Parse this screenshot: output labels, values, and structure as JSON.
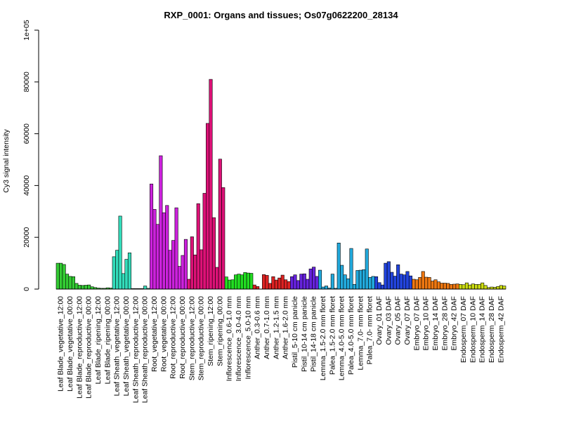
{
  "chart_data": {
    "type": "bar",
    "title": "RXP_0001: Organs and tissues; Os07g0622200_28134",
    "ylabel": "Cy3 signal intensity",
    "xlabel": "",
    "ylim": [
      0,
      100000
    ],
    "yticks": [
      {
        "value": 0,
        "label": "0"
      },
      {
        "value": 20000,
        "label": "20000"
      },
      {
        "value": 40000,
        "label": "40000"
      },
      {
        "value": 60000,
        "label": "60000"
      },
      {
        "value": 80000,
        "label": "80000"
      },
      {
        "value": 100000,
        "label": "1e+05"
      }
    ],
    "groups": [
      {
        "label": "Leaf Blade_vegetative_12:00",
        "color": "#33cc33",
        "values": [
          10000,
          10000,
          9500
        ]
      },
      {
        "label": "Leaf Blade_vegetative_00:00",
        "color": "#33cc33",
        "values": [
          5800,
          4900,
          4800
        ]
      },
      {
        "label": "Leaf Blade_reproductive_12:00",
        "color": "#33cc33",
        "values": [
          2200,
          1500,
          1400
        ]
      },
      {
        "label": "Leaf Blade_reproductive_00:00",
        "color": "#33cc33",
        "values": [
          1500,
          1600,
          900
        ]
      },
      {
        "label": "Leaf Blade_ripening_12:00",
        "color": "#33cc33",
        "values": [
          600,
          400,
          300
        ]
      },
      {
        "label": "Leaf Blade_ripening_00:00",
        "color": "#33cc33",
        "values": [
          300,
          500,
          400
        ]
      },
      {
        "label": "Leaf Sheath_vegetative_12:00",
        "color": "#33ddbb",
        "values": [
          12500,
          15000,
          28200
        ]
      },
      {
        "label": "Leaf Sheath_vegetative_00:00",
        "color": "#33ddbb",
        "values": [
          6000,
          11500,
          14000
        ]
      },
      {
        "label": "Leaf Sheath_reproductive_12:00",
        "color": "#33ddbb",
        "values": [
          200,
          200,
          200
        ]
      },
      {
        "label": "Leaf Sheath_reproductive_00:00",
        "color": "#33ddbb",
        "values": [
          200,
          1200,
          300
        ]
      },
      {
        "label": "Root_vegetative_12:00",
        "color": "#cc22dd",
        "values": [
          40600,
          30800,
          25000
        ]
      },
      {
        "label": "Root_vegetative_00:00",
        "color": "#cc22dd",
        "values": [
          51500,
          29500,
          32300
        ]
      },
      {
        "label": "Root_reproductive_12:00",
        "color": "#cc22dd",
        "values": [
          15000,
          18800,
          31400
        ]
      },
      {
        "label": "Root_reproductive_00:00",
        "color": "#cc22dd",
        "values": [
          8800,
          13000,
          19200
        ]
      },
      {
        "label": "Stem_reproductive_12:00",
        "color": "#dd1177",
        "values": [
          3800,
          20200,
          13200
        ]
      },
      {
        "label": "Stem_reproductive_00:00",
        "color": "#dd1177",
        "values": [
          33000,
          15200,
          37000
        ]
      },
      {
        "label": "Stem_ripening_12:00",
        "color": "#dd1177",
        "values": [
          64000,
          81000,
          27600
        ]
      },
      {
        "label": "Stem_ripening_00:00",
        "color": "#dd1177",
        "values": [
          8400,
          50200,
          39200
        ]
      },
      {
        "label": "Inflorescence_0.6-1.0 mm",
        "color": "#22dd22",
        "values": [
          4700,
          3500,
          3600
        ]
      },
      {
        "label": "Inflorescence_3.0-4.0 mm",
        "color": "#22dd22",
        "values": [
          5500,
          5800,
          5500
        ]
      },
      {
        "label": "Inflorescence_5.0-10 mm",
        "color": "#22dd22",
        "values": [
          6400,
          6200,
          6100
        ]
      },
      {
        "label": "Anther_0.3-0.6 mm",
        "color": "#dd2222",
        "values": [
          1600,
          1000,
          0
        ]
      },
      {
        "label": "Anther_0.7-1.0 mm",
        "color": "#dd2222",
        "values": [
          5600,
          5300,
          2200
        ]
      },
      {
        "label": "Anther_1.2-1.5 mm",
        "color": "#dd2222",
        "values": [
          4800,
          3500,
          4300
        ]
      },
      {
        "label": "Anther_1.6-2.0 mm",
        "color": "#dd2222",
        "values": [
          5400,
          3600,
          2900
        ]
      },
      {
        "label": "Pistil_5-10 cm panicle",
        "color": "#6622dd",
        "values": [
          4800,
          5500,
          3300
        ]
      },
      {
        "label": "Pistil_10-14 cm panicle",
        "color": "#6622dd",
        "values": [
          5800,
          5900,
          3800
        ]
      },
      {
        "label": "Pistil_14-18 cm panicle",
        "color": "#6622dd",
        "values": [
          7800,
          8500,
          4900
        ]
      },
      {
        "label": "Lemma_1.5-2.0 mm floret",
        "color": "#22aadd",
        "values": [
          7300,
          800,
          1200
        ]
      },
      {
        "label": "Palea_1.5-2.0 mm floret",
        "color": "#22aadd",
        "values": [
          400,
          5800,
          300
        ]
      },
      {
        "label": "Lemma_4.0-5.0 mm floret",
        "color": "#22aadd",
        "values": [
          17800,
          9200,
          5500
        ]
      },
      {
        "label": "Palea_4.0-5.0 mm floret",
        "color": "#22aadd",
        "values": [
          4000,
          15700,
          1800
        ]
      },
      {
        "label": "Lemma_7.0- mm floret",
        "color": "#22aadd",
        "values": [
          7200,
          7300,
          7500
        ]
      },
      {
        "label": "Palea_7.0- mm floret",
        "color": "#22aadd",
        "values": [
          15500,
          4500,
          4900
        ]
      },
      {
        "label": "Ovary_01 DAF",
        "color": "#2244dd",
        "values": [
          4800,
          2500,
          1600
        ]
      },
      {
        "label": "Ovary_03 DAF",
        "color": "#2244dd",
        "values": [
          10000,
          10600,
          6500
        ]
      },
      {
        "label": "Ovary_05 DAF",
        "color": "#2244dd",
        "values": [
          5000,
          9400,
          5800
        ]
      },
      {
        "label": "Ovary_07 DAF",
        "color": "#2244dd",
        "values": [
          5500,
          6800,
          5100
        ]
      },
      {
        "label": "Embryo_07 DAF",
        "color": "#ee7711",
        "values": [
          3800,
          3600,
          4500
        ]
      },
      {
        "label": "Embryo_10 DAF",
        "color": "#ee7711",
        "values": [
          6800,
          4600,
          4500
        ]
      },
      {
        "label": "Embryo_14 DAF",
        "color": "#ee7711",
        "values": [
          3100,
          3600,
          2800
        ]
      },
      {
        "label": "Embryo_28 DAF",
        "color": "#ee7711",
        "values": [
          2300,
          2300,
          2200
        ]
      },
      {
        "label": "Embryo_42 DAF",
        "color": "#ee7711",
        "values": [
          1800,
          1900,
          2000
        ]
      },
      {
        "label": "Endosperm_07 DAF",
        "color": "#ccdd11",
        "values": [
          1800,
          1700,
          2400
        ]
      },
      {
        "label": "Endosperm_10 DAF",
        "color": "#ccdd11",
        "values": [
          1600,
          2000,
          1800
        ]
      },
      {
        "label": "Endosperm_14 DAF",
        "color": "#ccdd11",
        "values": [
          1800,
          2400,
          1400
        ]
      },
      {
        "label": "Endosperm_28 DAF",
        "color": "#ccdd11",
        "values": [
          600,
          800,
          700
        ]
      },
      {
        "label": "Endosperm_42 DAF",
        "color": "#ccdd11",
        "values": [
          1000,
          1400,
          1200
        ]
      }
    ]
  }
}
